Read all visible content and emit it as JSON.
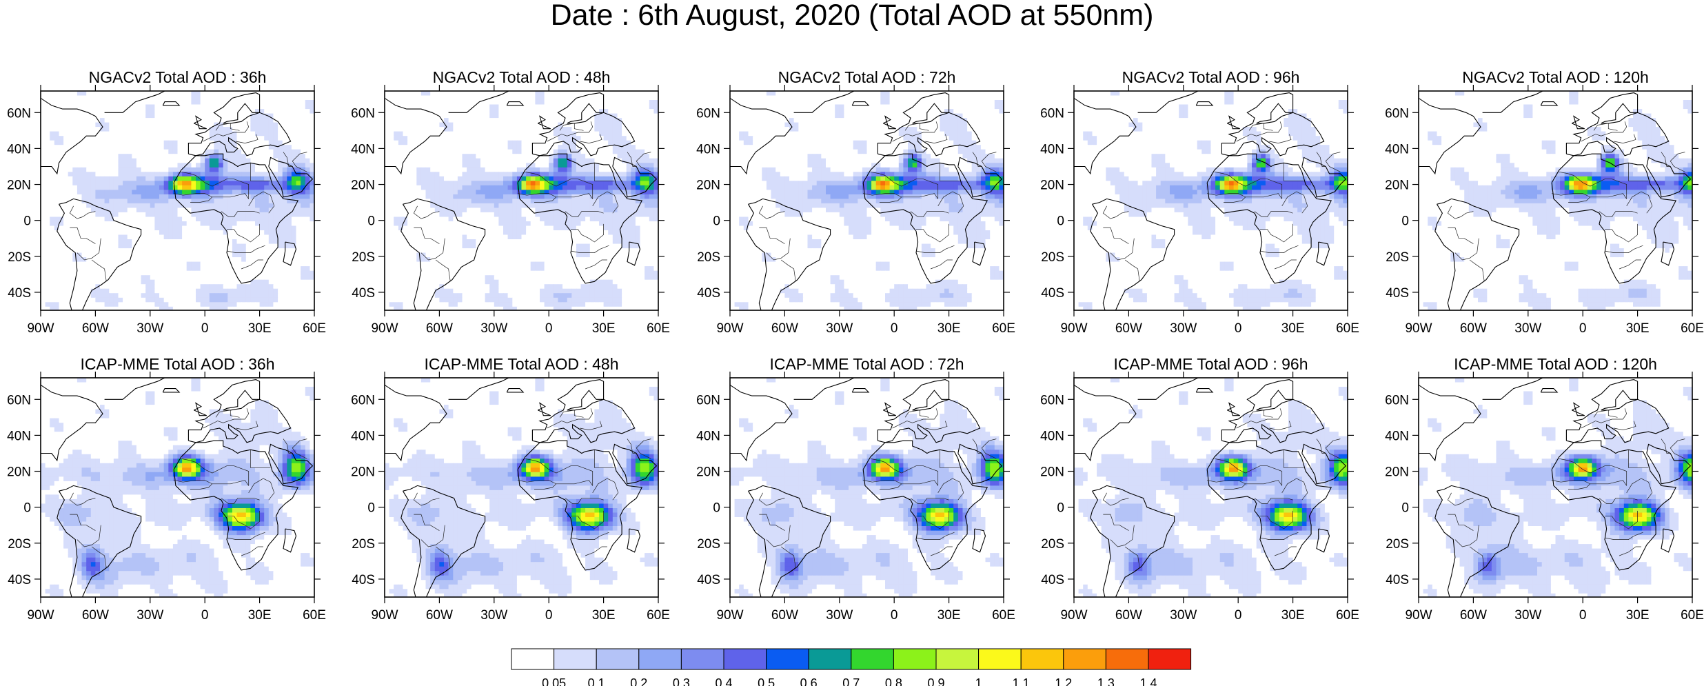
{
  "title": "Date : 6th August, 2020 (Total AOD at 550nm)",
  "map_axes": {
    "lon_ticks": [
      "90W",
      "60W",
      "30W",
      "0",
      "30E",
      "60E"
    ],
    "lat_ticks": [
      "60N",
      "40N",
      "20N",
      "0",
      "20S",
      "40S"
    ]
  },
  "panels": [
    {
      "title": "NGACv2 Total AOD : 36h",
      "model": "NGACv2",
      "lead": "36h"
    },
    {
      "title": "NGACv2 Total AOD : 48h",
      "model": "NGACv2",
      "lead": "48h"
    },
    {
      "title": "NGACv2 Total AOD : 72h",
      "model": "NGACv2",
      "lead": "72h"
    },
    {
      "title": "NGACv2 Total AOD : 96h",
      "model": "NGACv2",
      "lead": "96h"
    },
    {
      "title": "NGACv2 Total AOD : 120h",
      "model": "NGACv2",
      "lead": "120h"
    },
    {
      "title": "ICAP-MME Total AOD : 36h",
      "model": "ICAP-MME",
      "lead": "36h"
    },
    {
      "title": "ICAP-MME Total AOD : 48h",
      "model": "ICAP-MME",
      "lead": "48h"
    },
    {
      "title": "ICAP-MME Total AOD : 72h",
      "model": "ICAP-MME",
      "lead": "72h"
    },
    {
      "title": "ICAP-MME Total AOD : 96h",
      "model": "ICAP-MME",
      "lead": "96h"
    },
    {
      "title": "ICAP-MME Total AOD : 120h",
      "model": "ICAP-MME",
      "lead": "120h"
    }
  ],
  "colorbar": {
    "labels": [
      "0.05",
      "0.1",
      "0.2",
      "0.3",
      "0.4",
      "0.5",
      "0.6",
      "0.7",
      "0.8",
      "0.9",
      "1",
      "1.1",
      "1.2",
      "1.3",
      "1.4"
    ],
    "colors": [
      "#ffffff",
      "#d6ddfb",
      "#b4c3f7",
      "#8fa8f5",
      "#7d8cf0",
      "#5f63ea",
      "#0a5cf2",
      "#0a9a96",
      "#33d62e",
      "#8cf21a",
      "#c7f53d",
      "#fbf91b",
      "#fbc60c",
      "#fb9e0c",
      "#f76d0b",
      "#f0210f"
    ]
  }
}
